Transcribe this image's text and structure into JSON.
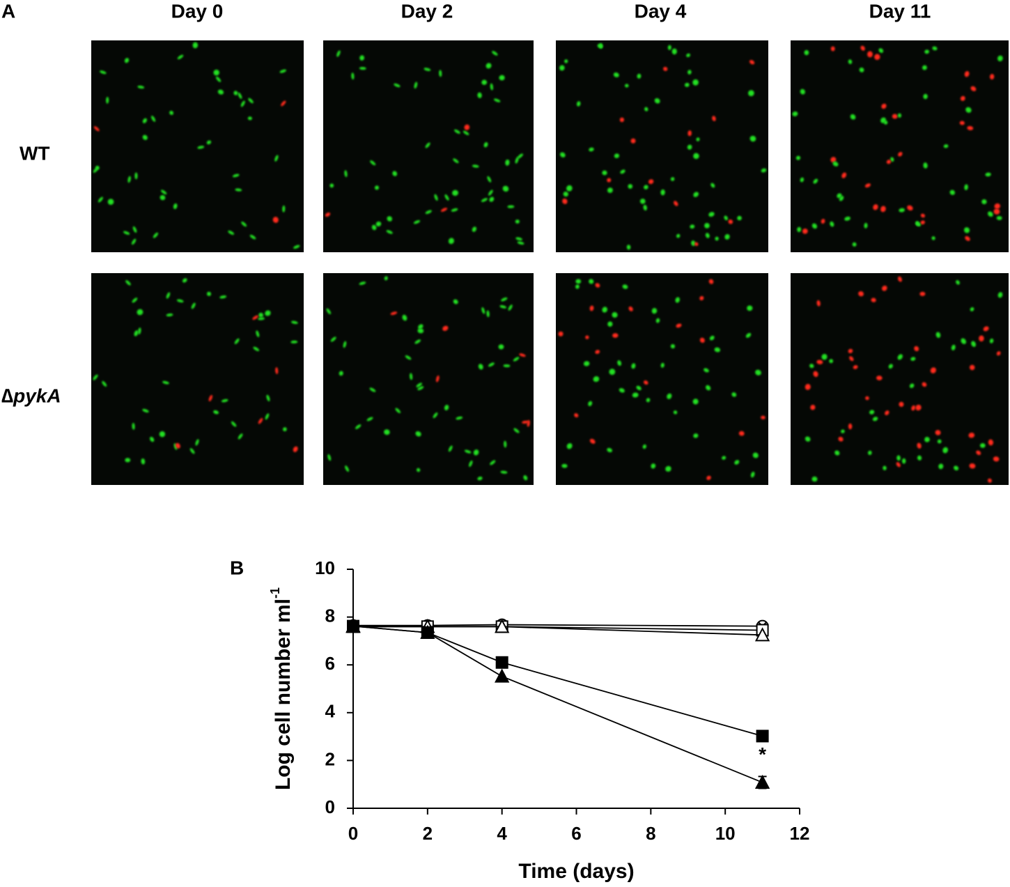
{
  "panel_a": {
    "label": "A",
    "columns": [
      "Day 0",
      "Day 2",
      "Day 4",
      "Day 11"
    ],
    "rows": [
      "WT",
      "∆pykA"
    ]
  },
  "panel_b": {
    "label": "B"
  },
  "chart_data": {
    "type": "line",
    "x_label": "Time (days)",
    "y_label": "Log cell number ml",
    "y_label_sup": "-1",
    "x": [
      0,
      2,
      4,
      11
    ],
    "xlim": [
      0,
      12
    ],
    "xticks": [
      0,
      2,
      4,
      6,
      8,
      10,
      12
    ],
    "ylim": [
      0,
      10
    ],
    "yticks": [
      0,
      2,
      4,
      6,
      8,
      10
    ],
    "grid": false,
    "series": [
      {
        "color": "#000000",
        "marker": "circle-x",
        "values": [
          7.65,
          7.65,
          7.68,
          7.62
        ]
      },
      {
        "color": "#000000",
        "marker": "square-open",
        "values": [
          7.6,
          7.6,
          7.6,
          7.45
        ]
      },
      {
        "color": "#000000",
        "marker": "triangle-open",
        "values": [
          7.6,
          7.6,
          7.6,
          7.25
        ]
      },
      {
        "color": "#000000",
        "marker": "square",
        "values": [
          7.62,
          7.35,
          6.1,
          3.02
        ]
      },
      {
        "color": "#000000",
        "marker": "triangle",
        "values": [
          7.62,
          7.35,
          5.52,
          1.08
        ],
        "errors": [
          null,
          null,
          null,
          0.25
        ]
      }
    ],
    "annotations": [
      {
        "text": "*",
        "x": 11,
        "y": 2.2
      }
    ]
  }
}
